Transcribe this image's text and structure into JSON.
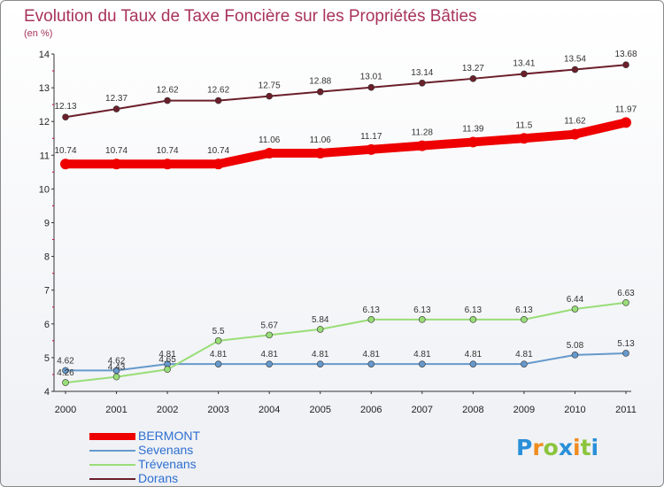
{
  "chart_data": {
    "type": "line",
    "title": "Evolution du Taux de Taxe Foncière sur les Propriétés Bâties",
    "subtitle": "(en %)",
    "categories": [
      "2000",
      "2001",
      "2002",
      "2003",
      "2004",
      "2005",
      "2006",
      "2007",
      "2008",
      "2009",
      "2010",
      "2011"
    ],
    "ylim": [
      4,
      14
    ],
    "yticks": [
      "4",
      "5",
      "6",
      "7",
      "8",
      "9",
      "10",
      "11",
      "12",
      "13",
      "14"
    ],
    "series": [
      {
        "name": "BERMONT",
        "color": "#ee0000",
        "values": [
          10.74,
          10.74,
          10.74,
          10.74,
          11.06,
          11.06,
          11.17,
          11.28,
          11.39,
          11.5,
          11.62,
          11.97
        ],
        "labels": [
          "10.74",
          "10.74",
          "10.74",
          "10.74",
          "11.06",
          "11.06",
          "11.17",
          "11.28",
          "11.39",
          "11.5",
          "11.62",
          "11.97"
        ]
      },
      {
        "name": "Sevenans",
        "color": "#6699cc",
        "values": [
          4.62,
          4.62,
          4.81,
          4.81,
          4.81,
          4.81,
          4.81,
          4.81,
          4.81,
          4.81,
          5.08,
          5.13
        ],
        "labels": [
          "4.62",
          "4.62",
          "4.81",
          "4.81",
          "4.81",
          "4.81",
          "4.81",
          "4.81",
          "4.81",
          "4.81",
          "5.08",
          "5.13"
        ]
      },
      {
        "name": "Trévenans",
        "color": "#99dd77",
        "values": [
          4.26,
          4.43,
          4.65,
          5.5,
          5.67,
          5.84,
          6.13,
          6.13,
          6.13,
          6.13,
          6.44,
          6.63
        ],
        "labels": [
          "4.26",
          "4.43",
          "4.65",
          "5.5",
          "5.67",
          "5.84",
          "6.13",
          "6.13",
          "6.13",
          "6.13",
          "6.44",
          "6.63"
        ]
      },
      {
        "name": "Dorans",
        "color": "#6b1f2a",
        "values": [
          12.13,
          12.37,
          12.62,
          12.62,
          12.75,
          12.88,
          13.01,
          13.14,
          13.27,
          13.41,
          13.54,
          13.68
        ],
        "labels": [
          "12.13",
          "12.37",
          "12.62",
          "12.62",
          "12.75",
          "12.88",
          "13.01",
          "13.14",
          "13.27",
          "13.41",
          "13.54",
          "13.68"
        ]
      }
    ],
    "legend": [
      "BERMONT",
      "Sevenans",
      "Trévenans",
      "Dorans"
    ],
    "legend_position": "bottom-left",
    "grid": false
  },
  "logo": {
    "letters": [
      "P",
      "r",
      "o",
      "x",
      "i",
      "t",
      "i"
    ],
    "colors": [
      "#2a8fd8",
      "#f08c1e",
      "#8cc43c",
      "#2a8fd8",
      "#f08c1e",
      "#8cc43c",
      "#2a8fd8"
    ]
  }
}
